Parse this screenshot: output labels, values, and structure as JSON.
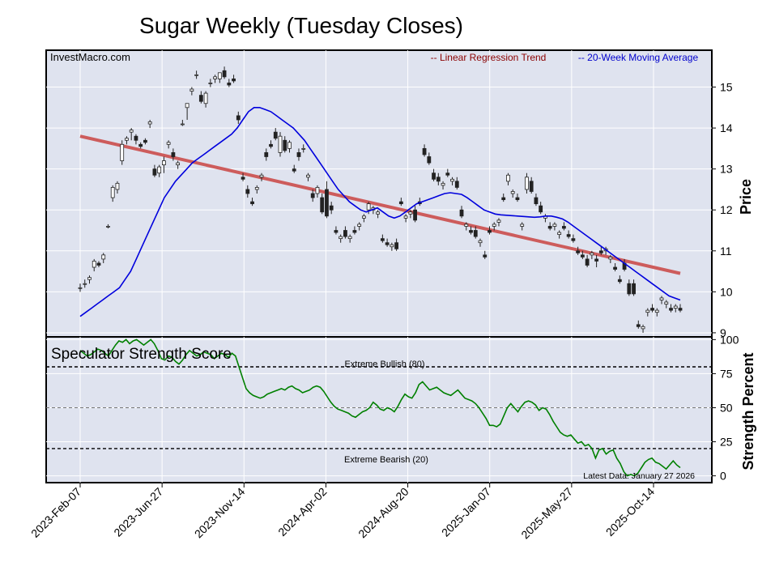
{
  "chart_data": {
    "title": "Sugar Weekly (Tuesday Closes)",
    "watermark": "InvestMacro.com",
    "x_tick_labels": [
      "2023-Feb-07",
      "2023-Jun-27",
      "2023-Nov-14",
      "2024-Apr-02",
      "2024-Aug-20",
      "2025-Jan-07",
      "2025-May-27",
      "2025-Oct-14"
    ],
    "panels": [
      {
        "type": "candlestick",
        "ylabel": "Price",
        "ylim": [
          8.9,
          15.9
        ],
        "yticks": [
          9,
          10,
          11,
          12,
          13,
          14,
          15
        ],
        "grid": true,
        "legend_position": "top-right",
        "legend": [
          {
            "label": "-- Linear Regression Trend",
            "color": "#8b0000"
          },
          {
            "label": "-- 20-Week Moving Average",
            "color": "#0000cc"
          }
        ],
        "colors": {
          "up": "#ffffff",
          "down": "#222222",
          "trend": "#cd5c5c",
          "ma": "#0000dd"
        },
        "candles": [
          [
            10.1,
            10.2,
            10.0,
            10.1
          ],
          [
            10.2,
            10.3,
            10.1,
            10.2
          ],
          [
            10.3,
            10.4,
            10.2,
            10.35
          ],
          [
            10.6,
            10.8,
            10.5,
            10.75
          ],
          [
            10.7,
            10.75,
            10.6,
            10.65
          ],
          [
            10.8,
            10.95,
            10.7,
            10.9
          ],
          [
            11.6,
            11.65,
            11.55,
            11.6
          ],
          [
            12.3,
            12.6,
            12.2,
            12.55
          ],
          [
            12.5,
            12.7,
            12.4,
            12.65
          ],
          [
            13.2,
            13.7,
            13.1,
            13.6
          ],
          [
            13.7,
            13.8,
            13.6,
            13.75
          ],
          [
            13.9,
            14.0,
            13.7,
            13.95
          ],
          [
            13.8,
            13.85,
            13.6,
            13.7
          ],
          [
            13.6,
            13.65,
            13.5,
            13.55
          ],
          [
            13.7,
            13.75,
            13.6,
            13.65
          ],
          [
            14.1,
            14.2,
            14.0,
            14.15
          ],
          [
            13.0,
            13.1,
            12.8,
            12.85
          ],
          [
            12.9,
            13.1,
            12.8,
            13.05
          ],
          [
            13.1,
            13.3,
            12.9,
            13.2
          ],
          [
            13.6,
            13.7,
            13.5,
            13.65
          ],
          [
            13.4,
            13.5,
            13.2,
            13.3
          ],
          [
            13.1,
            13.2,
            13.0,
            13.15
          ],
          [
            14.1,
            14.2,
            14.05,
            14.1
          ],
          [
            14.5,
            14.6,
            14.2,
            14.6
          ],
          [
            14.9,
            15.0,
            14.8,
            14.95
          ],
          [
            15.3,
            15.4,
            15.2,
            15.3
          ],
          [
            14.8,
            14.9,
            14.6,
            14.65
          ],
          [
            14.6,
            14.9,
            14.5,
            14.85
          ],
          [
            15.1,
            15.2,
            15.0,
            15.1
          ],
          [
            15.2,
            15.3,
            15.1,
            15.25
          ],
          [
            15.2,
            15.3,
            15.1,
            15.35
          ],
          [
            15.4,
            15.5,
            15.2,
            15.25
          ],
          [
            15.1,
            15.2,
            15.0,
            15.05
          ],
          [
            15.2,
            15.3,
            15.1,
            15.15
          ],
          [
            14.3,
            14.4,
            14.1,
            14.2
          ],
          [
            12.8,
            12.9,
            12.7,
            12.75
          ],
          [
            12.5,
            12.6,
            12.3,
            12.4
          ],
          [
            12.2,
            12.3,
            12.1,
            12.15
          ],
          [
            12.5,
            12.6,
            12.4,
            12.55
          ],
          [
            12.8,
            12.9,
            12.7,
            12.85
          ],
          [
            13.4,
            13.5,
            13.2,
            13.3
          ],
          [
            13.6,
            13.7,
            13.5,
            13.55
          ],
          [
            13.9,
            14.0,
            13.7,
            13.75
          ],
          [
            13.4,
            13.9,
            13.3,
            13.8
          ],
          [
            13.7,
            13.8,
            13.4,
            13.45
          ],
          [
            13.5,
            13.7,
            13.4,
            13.65
          ],
          [
            13.0,
            13.1,
            12.9,
            12.95
          ],
          [
            13.4,
            13.5,
            13.2,
            13.3
          ],
          [
            13.5,
            13.6,
            13.4,
            13.5
          ],
          [
            12.8,
            12.9,
            12.7,
            12.85
          ],
          [
            12.4,
            12.5,
            12.2,
            12.3
          ],
          [
            12.4,
            12.6,
            12.3,
            12.55
          ],
          [
            12.3,
            12.4,
            11.9,
            11.95
          ],
          [
            12.5,
            12.7,
            11.8,
            11.85
          ],
          [
            12.1,
            12.2,
            11.9,
            12.0
          ],
          [
            11.5,
            11.6,
            11.4,
            11.45
          ],
          [
            11.3,
            11.4,
            11.2,
            11.35
          ],
          [
            11.5,
            11.6,
            11.3,
            11.35
          ],
          [
            11.3,
            11.4,
            11.2,
            11.35
          ],
          [
            11.5,
            11.6,
            11.4,
            11.45
          ],
          [
            11.6,
            11.7,
            11.5,
            11.65
          ],
          [
            11.8,
            11.9,
            11.7,
            11.85
          ],
          [
            12.0,
            12.2,
            11.9,
            12.15
          ],
          [
            12.0,
            12.1,
            11.9,
            12.05
          ],
          [
            11.9,
            12.0,
            11.8,
            11.95
          ],
          [
            11.3,
            11.4,
            11.2,
            11.25
          ],
          [
            11.2,
            11.3,
            11.1,
            11.15
          ],
          [
            11.1,
            11.2,
            11.0,
            11.15
          ],
          [
            11.2,
            11.3,
            11.0,
            11.05
          ],
          [
            12.2,
            12.3,
            12.1,
            12.15
          ],
          [
            11.8,
            11.9,
            11.7,
            11.85
          ],
          [
            11.9,
            12.0,
            11.8,
            11.95
          ],
          [
            12.0,
            12.1,
            11.7,
            11.75
          ],
          [
            12.2,
            12.3,
            12.1,
            12.15
          ],
          [
            13.5,
            13.6,
            13.3,
            13.35
          ],
          [
            13.3,
            13.4,
            13.1,
            13.15
          ],
          [
            12.9,
            13.0,
            12.7,
            12.75
          ],
          [
            12.8,
            12.9,
            12.6,
            12.7
          ],
          [
            12.6,
            12.7,
            12.5,
            12.65
          ],
          [
            12.9,
            13.0,
            12.8,
            12.85
          ],
          [
            12.7,
            12.8,
            12.6,
            12.75
          ],
          [
            12.7,
            12.8,
            12.5,
            12.55
          ],
          [
            12.0,
            12.1,
            11.8,
            11.85
          ],
          [
            11.6,
            11.7,
            11.5,
            11.65
          ],
          [
            11.5,
            11.6,
            11.4,
            11.45
          ],
          [
            11.5,
            11.6,
            11.3,
            11.35
          ],
          [
            11.2,
            11.3,
            11.1,
            11.25
          ],
          [
            10.9,
            11.0,
            10.8,
            10.85
          ],
          [
            11.5,
            11.6,
            11.4,
            11.45
          ],
          [
            11.6,
            11.7,
            11.5,
            11.65
          ],
          [
            11.7,
            11.8,
            11.6,
            11.75
          ],
          [
            12.3,
            12.4,
            12.2,
            12.25
          ],
          [
            12.7,
            12.9,
            12.6,
            12.85
          ],
          [
            12.4,
            12.5,
            12.3,
            12.45
          ],
          [
            12.3,
            12.4,
            12.2,
            12.25
          ],
          [
            11.6,
            11.7,
            11.5,
            11.65
          ],
          [
            12.5,
            12.9,
            12.4,
            12.8
          ],
          [
            12.7,
            12.8,
            12.4,
            12.45
          ],
          [
            12.3,
            12.4,
            12.1,
            12.15
          ],
          [
            12.1,
            12.2,
            11.9,
            11.95
          ],
          [
            11.8,
            11.9,
            11.7,
            11.85
          ],
          [
            11.6,
            11.7,
            11.5,
            11.55
          ],
          [
            11.6,
            11.7,
            11.5,
            11.65
          ],
          [
            11.4,
            11.5,
            11.3,
            11.45
          ],
          [
            11.6,
            11.7,
            11.5,
            11.55
          ],
          [
            11.4,
            11.5,
            11.3,
            11.35
          ],
          [
            11.3,
            11.4,
            11.2,
            11.25
          ],
          [
            11.0,
            11.1,
            10.9,
            10.95
          ],
          [
            10.9,
            11.0,
            10.8,
            10.85
          ],
          [
            10.8,
            10.9,
            10.6,
            10.65
          ],
          [
            10.9,
            11.0,
            10.8,
            10.95
          ],
          [
            10.8,
            10.9,
            10.6,
            10.75
          ],
          [
            11.0,
            11.1,
            10.9,
            10.95
          ],
          [
            11.0,
            11.1,
            10.9,
            11.05
          ],
          [
            10.8,
            10.9,
            10.7,
            10.85
          ],
          [
            10.6,
            10.7,
            10.5,
            10.55
          ],
          [
            10.3,
            10.4,
            10.2,
            10.25
          ],
          [
            10.7,
            10.8,
            10.5,
            10.55
          ],
          [
            10.2,
            10.3,
            9.9,
            9.95
          ],
          [
            10.2,
            10.3,
            9.9,
            9.95
          ],
          [
            9.2,
            9.3,
            9.1,
            9.15
          ],
          [
            9.1,
            9.2,
            9.0,
            9.15
          ],
          [
            9.5,
            9.6,
            9.4,
            9.55
          ],
          [
            9.6,
            9.7,
            9.5,
            9.55
          ],
          [
            9.5,
            9.6,
            9.4,
            9.55
          ],
          [
            9.8,
            9.9,
            9.7,
            9.85
          ],
          [
            9.7,
            9.8,
            9.6,
            9.75
          ],
          [
            9.6,
            9.7,
            9.5,
            9.55
          ],
          [
            9.6,
            9.7,
            9.5,
            9.65
          ],
          [
            9.6,
            9.7,
            9.5,
            9.55
          ]
        ],
        "trend": [
          [
            0,
            13.8
          ],
          [
            129,
            10.45
          ]
        ],
        "moving_average": [
          9.4,
          9.5,
          9.6,
          9.7,
          9.8,
          9.9,
          10.0,
          10.1,
          10.3,
          10.5,
          10.8,
          11.1,
          11.4,
          11.7,
          12.0,
          12.3,
          12.5,
          12.7,
          12.85,
          13.0,
          13.15,
          13.25,
          13.35,
          13.45,
          13.55,
          13.65,
          13.75,
          13.85,
          14.0,
          14.2,
          14.4,
          14.5,
          14.5,
          14.45,
          14.4,
          14.3,
          14.2,
          14.1,
          14.0,
          13.85,
          13.7,
          13.5,
          13.3,
          13.1,
          12.9,
          12.7,
          12.5,
          12.35,
          12.2,
          12.1,
          12.0,
          11.95,
          12.0,
          12.05,
          11.95,
          11.85,
          11.8,
          11.85,
          11.95,
          12.05,
          12.15,
          12.2,
          12.25,
          12.3,
          12.35,
          12.4,
          12.42,
          12.4,
          12.38,
          12.3,
          12.2,
          12.1,
          12.0,
          11.95,
          11.9,
          11.88,
          11.87,
          11.86,
          11.85,
          11.84,
          11.83,
          11.82,
          11.83,
          11.85,
          11.85,
          11.82,
          11.78,
          11.7,
          11.6,
          11.5,
          11.4,
          11.3,
          11.2,
          11.1,
          11.0,
          10.9,
          10.8,
          10.7,
          10.6,
          10.5,
          10.4,
          10.3,
          10.2,
          10.1,
          10.0,
          9.9,
          9.85,
          9.8
        ]
      },
      {
        "type": "line",
        "title": "Speculator Strength Score",
        "ylabel": "Strength Percent",
        "ylim": [
          -5,
          102
        ],
        "yticks": [
          0,
          25,
          50,
          75,
          100
        ],
        "reference_lines": [
          {
            "value": 80,
            "label": "Extreme Bullish (80)"
          },
          {
            "value": 50,
            "label": ""
          },
          {
            "value": 20,
            "label": "Extreme Bearish (20)"
          }
        ],
        "annotation": "Latest Data: January 27 2026",
        "color": "#008000",
        "values": [
          92,
          90,
          88,
          89,
          91,
          93,
          92,
          90,
          88,
          92,
          96,
          99,
          98,
          100,
          97,
          99,
          100,
          98,
          96,
          98,
          100,
          97,
          92,
          86,
          85,
          88,
          87,
          84,
          82,
          85,
          89,
          92,
          90,
          88,
          89,
          91,
          90,
          89,
          86,
          88,
          90,
          89,
          87,
          90,
          88,
          80,
          72,
          64,
          61,
          59,
          58,
          57,
          58,
          60,
          61,
          62,
          63,
          64,
          63,
          65,
          66,
          64,
          63,
          61,
          62,
          63,
          65,
          66,
          65,
          62,
          58,
          54,
          51,
          49,
          48,
          47,
          46,
          44,
          43,
          45,
          47,
          48,
          50,
          54,
          52,
          49,
          48,
          50,
          49,
          47,
          51,
          56,
          60,
          58,
          57,
          61,
          67,
          69,
          66,
          63,
          64,
          65,
          63,
          61,
          60,
          59,
          61,
          63,
          60,
          57,
          56,
          55,
          53,
          50,
          46,
          42,
          37,
          37,
          36,
          38,
          44,
          50,
          53,
          50,
          47,
          51,
          54,
          55,
          54,
          52,
          48,
          50,
          49,
          45,
          40,
          36,
          32,
          30,
          29,
          30,
          27,
          24,
          25,
          22,
          23,
          20,
          13,
          19,
          20,
          16,
          18,
          19,
          13,
          9,
          3,
          0,
          1,
          0,
          2,
          6,
          10,
          12,
          13,
          10,
          9,
          7,
          5,
          8,
          11,
          8,
          6
        ]
      }
    ]
  }
}
